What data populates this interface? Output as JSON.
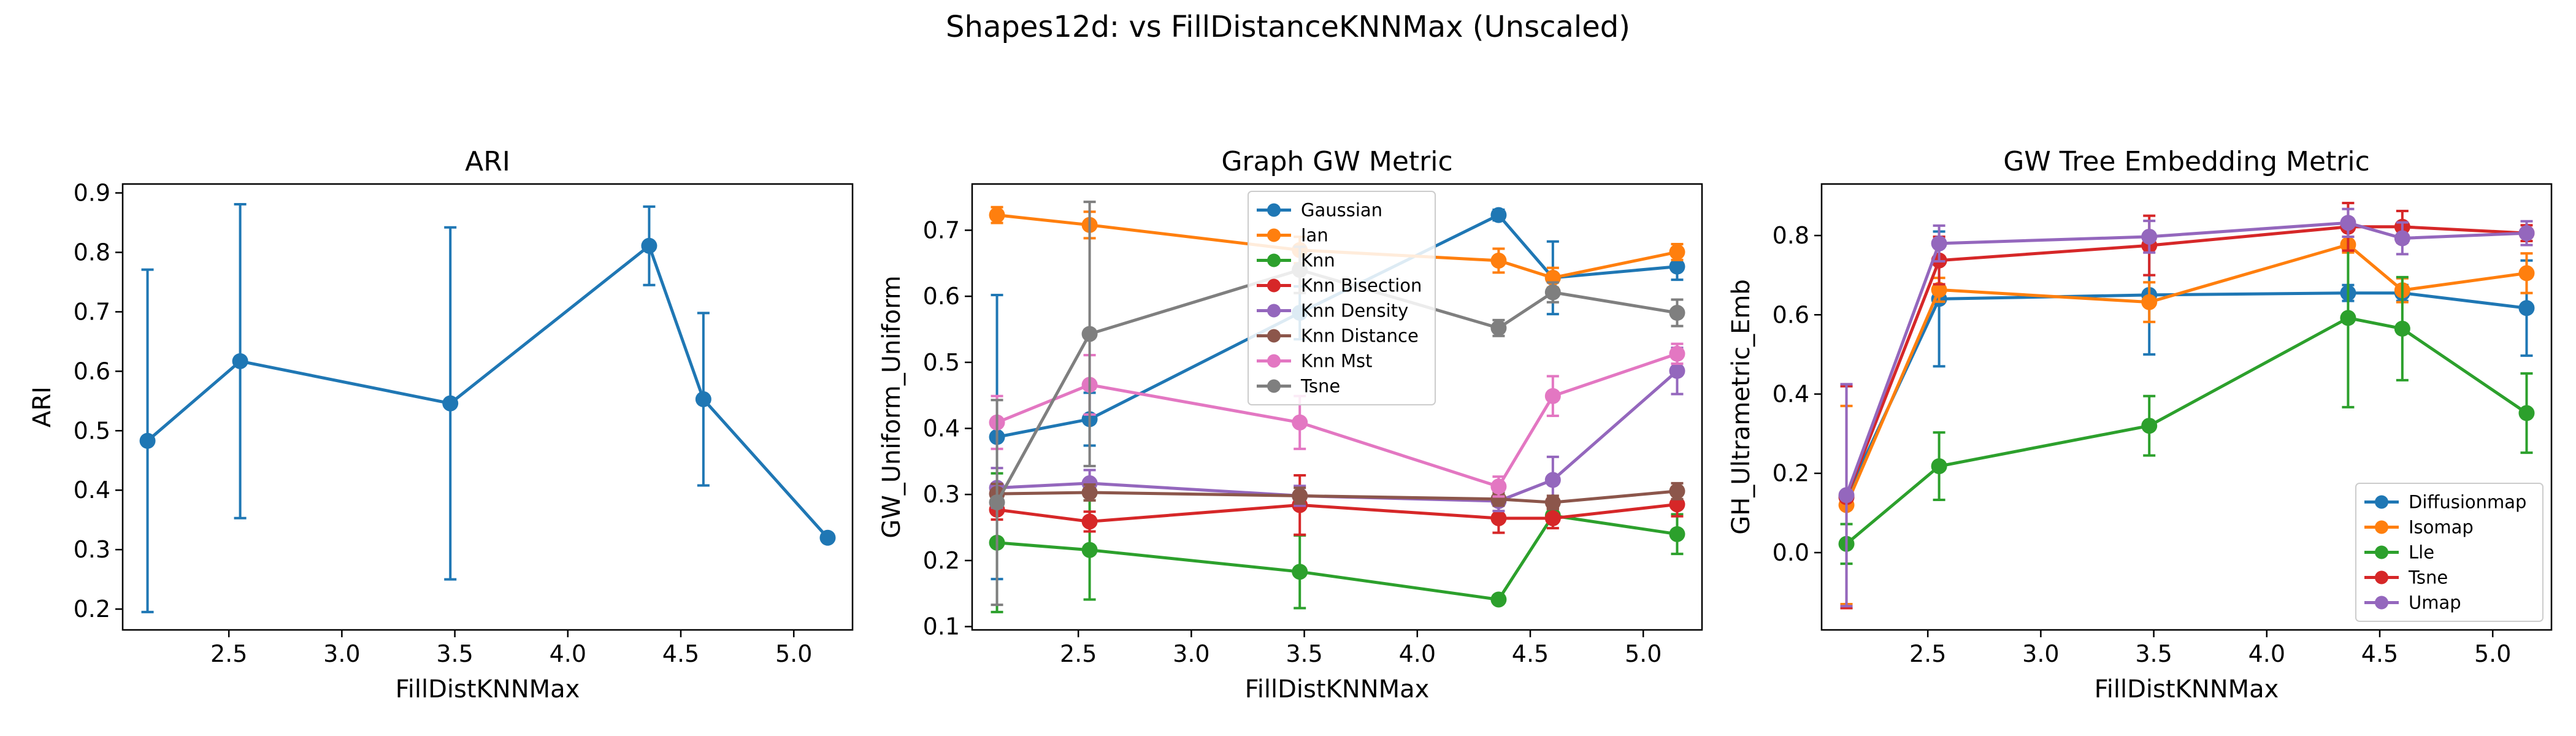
{
  "figure": {
    "suptitle": "Shapes12d: vs FillDistanceKNNMax (Unscaled)"
  },
  "chart_data": [
    {
      "type": "line",
      "title": "ARI",
      "xlabel": "FillDistKNNMax",
      "ylabel": "ARI",
      "xlim": [
        2.03,
        5.26
      ],
      "ylim": [
        0.165,
        0.915
      ],
      "xticks": [
        2.5,
        3.0,
        3.5,
        4.0,
        4.5,
        5.0
      ],
      "yticks": [
        0.2,
        0.3,
        0.4,
        0.5,
        0.6,
        0.7,
        0.8,
        0.9
      ],
      "legend": null,
      "series": [
        {
          "name": "",
          "color": "#1f77b4",
          "x": [
            2.14,
            2.55,
            3.48,
            4.36,
            4.6,
            5.15
          ],
          "y": [
            0.483,
            0.617,
            0.546,
            0.811,
            0.553,
            0.32
          ],
          "err": [
            0.288,
            0.264,
            0.296,
            0.066,
            0.145,
            0.0
          ]
        }
      ]
    },
    {
      "type": "line",
      "title": "Graph GW Metric",
      "xlabel": "FillDistKNNMax",
      "ylabel": "GW_Uniform_Uniform",
      "xlim": [
        2.03,
        5.26
      ],
      "ylim": [
        0.095,
        0.77
      ],
      "xticks": [
        2.5,
        3.0,
        3.5,
        4.0,
        4.5,
        5.0
      ],
      "yticks": [
        0.1,
        0.2,
        0.3,
        0.4,
        0.5,
        0.6,
        0.7
      ],
      "legend": "upper-center",
      "series": [
        {
          "name": "Gaussian",
          "color": "#1f77b4",
          "x": [
            2.14,
            2.55,
            3.48,
            4.36,
            4.6,
            5.15
          ],
          "y": [
            0.387,
            0.414,
            0.575,
            0.723,
            0.628,
            0.645
          ],
          "err": [
            0.215,
            0.04,
            0.04,
            0.008,
            0.055,
            0.02
          ]
        },
        {
          "name": "Ian",
          "color": "#ff7f0e",
          "x": [
            2.14,
            2.55,
            3.48,
            4.36,
            4.6,
            5.15
          ],
          "y": [
            0.723,
            0.708,
            0.67,
            0.654,
            0.628,
            0.667
          ],
          "err": [
            0.012,
            0.02,
            0.02,
            0.018,
            0.015,
            0.012
          ]
        },
        {
          "name": "Knn",
          "color": "#2ca02c",
          "x": [
            2.14,
            2.55,
            3.48,
            4.36,
            4.6,
            5.15
          ],
          "y": [
            0.227,
            0.216,
            0.183,
            0.141,
            0.268,
            0.24
          ],
          "err": [
            0.105,
            0.075,
            0.055,
            0.005,
            0.01,
            0.03
          ]
        },
        {
          "name": "Knn Bisection",
          "color": "#d62728",
          "x": [
            2.14,
            2.55,
            3.48,
            4.36,
            4.6,
            5.15
          ],
          "y": [
            0.277,
            0.259,
            0.284,
            0.264,
            0.264,
            0.285
          ],
          "err": [
            0.015,
            0.015,
            0.045,
            0.022,
            0.015,
            0.018
          ]
        },
        {
          "name": "Knn Density",
          "color": "#9467bd",
          "x": [
            2.14,
            2.55,
            3.48,
            4.36,
            4.6,
            5.15
          ],
          "y": [
            0.31,
            0.317,
            0.298,
            0.29,
            0.322,
            0.487
          ],
          "err": [
            0.03,
            0.02,
            0.015,
            0.015,
            0.035,
            0.035
          ]
        },
        {
          "name": "Knn Distance",
          "color": "#8c564b",
          "x": [
            2.14,
            2.55,
            3.48,
            4.36,
            4.6,
            5.15
          ],
          "y": [
            0.301,
            0.303,
            0.298,
            0.293,
            0.288,
            0.305
          ],
          "err": [
            0.015,
            0.012,
            0.012,
            0.01,
            0.01,
            0.012
          ]
        },
        {
          "name": "Knn Mst",
          "color": "#e377c2",
          "x": [
            2.14,
            2.55,
            3.48,
            4.36,
            4.6,
            5.15
          ],
          "y": [
            0.409,
            0.466,
            0.409,
            0.312,
            0.449,
            0.513
          ],
          "err": [
            0.04,
            0.045,
            0.04,
            0.015,
            0.03,
            0.015
          ]
        },
        {
          "name": "Tsne",
          "color": "#7f7f7f",
          "x": [
            2.14,
            2.55,
            3.48,
            4.36,
            4.6,
            5.15
          ],
          "y": [
            0.288,
            0.543,
            0.64,
            0.552,
            0.606,
            0.575
          ],
          "err": [
            0.155,
            0.2,
            0.035,
            0.012,
            0.015,
            0.02
          ]
        }
      ]
    },
    {
      "type": "line",
      "title": "GW Tree Embedding Metric",
      "xlabel": "FillDistKNNMax",
      "ylabel": "GH_Ultrametric_Emb",
      "xlim": [
        2.03,
        5.26
      ],
      "ylim": [
        -0.195,
        0.93
      ],
      "xticks": [
        2.5,
        3.0,
        3.5,
        4.0,
        4.5,
        5.0
      ],
      "yticks": [
        0.0,
        0.2,
        0.4,
        0.6,
        0.8
      ],
      "legend": "lower-right",
      "series": [
        {
          "name": "Diffusionmap",
          "color": "#1f77b4",
          "x": [
            2.14,
            2.55,
            3.48,
            4.36,
            4.6,
            5.15
          ],
          "y": [
            0.14,
            0.64,
            0.65,
            0.655,
            0.655,
            0.617
          ],
          "err": [
            0.28,
            0.17,
            0.15,
            0.02,
            0.02,
            0.12
          ]
        },
        {
          "name": "Isomap",
          "color": "#ff7f0e",
          "x": [
            2.14,
            2.55,
            3.48,
            4.36,
            4.6,
            5.15
          ],
          "y": [
            0.12,
            0.663,
            0.632,
            0.777,
            0.662,
            0.705
          ],
          "err": [
            0.25,
            0.03,
            0.05,
            0.02,
            0.03,
            0.05
          ]
        },
        {
          "name": "Lle",
          "color": "#2ca02c",
          "x": [
            2.14,
            2.55,
            3.48,
            4.36,
            4.6,
            5.15
          ],
          "y": [
            0.022,
            0.218,
            0.32,
            0.592,
            0.565,
            0.352
          ],
          "err": [
            0.05,
            0.085,
            0.075,
            0.225,
            0.13,
            0.1
          ]
        },
        {
          "name": "Tsne",
          "color": "#d62728",
          "x": [
            2.14,
            2.55,
            3.48,
            4.36,
            4.6,
            5.15
          ],
          "y": [
            0.14,
            0.737,
            0.775,
            0.822,
            0.822,
            0.806
          ],
          "err": [
            0.28,
            0.06,
            0.075,
            0.06,
            0.04,
            0.02
          ]
        },
        {
          "name": "Umap",
          "color": "#9467bd",
          "x": [
            2.14,
            2.55,
            3.48,
            4.36,
            4.6,
            5.15
          ],
          "y": [
            0.145,
            0.78,
            0.797,
            0.832,
            0.793,
            0.806
          ],
          "err": [
            0.28,
            0.045,
            0.04,
            0.035,
            0.04,
            0.03
          ]
        }
      ]
    }
  ]
}
